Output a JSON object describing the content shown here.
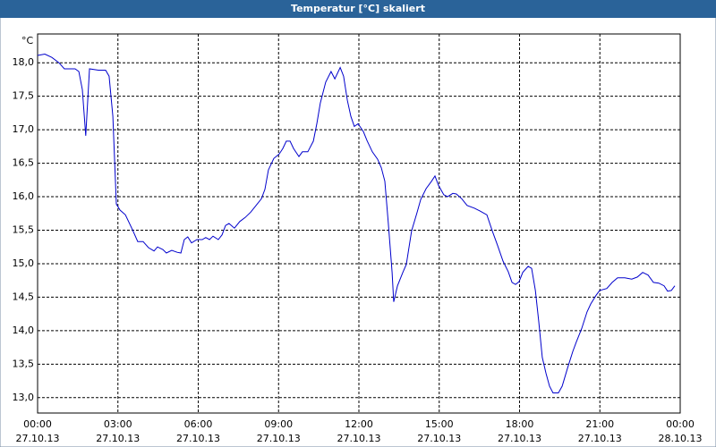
{
  "chart_data": {
    "type": "line",
    "title": "Temperatur [°C] skaliert",
    "y_unit": "°C",
    "xlim": [
      0,
      24
    ],
    "xticks": [
      {
        "value": 0,
        "label": "00:00",
        "date": "27.10.13"
      },
      {
        "value": 3,
        "label": "03:00",
        "date": "27.10.13"
      },
      {
        "value": 6,
        "label": "06:00",
        "date": "27.10.13"
      },
      {
        "value": 9,
        "label": "09:00",
        "date": "27.10.13"
      },
      {
        "value": 12,
        "label": "12:00",
        "date": "27.10.13"
      },
      {
        "value": 15,
        "label": "15:00",
        "date": "27.10.13"
      },
      {
        "value": 18,
        "label": "18:00",
        "date": "27.10.13"
      },
      {
        "value": 21,
        "label": "21:00",
        "date": "27.10.13"
      },
      {
        "value": 24,
        "label": "00:00",
        "date": "28.10.13"
      }
    ],
    "ylim": [
      12.77,
      18.43
    ],
    "yticks": [
      {
        "value": 13,
        "label": "13,0"
      },
      {
        "value": 13.5,
        "label": "13,5"
      },
      {
        "value": 14,
        "label": "14,0"
      },
      {
        "value": 14.5,
        "label": "14,5"
      },
      {
        "value": 15,
        "label": "15,0"
      },
      {
        "value": 15.5,
        "label": "15,5"
      },
      {
        "value": 16,
        "label": "16,0"
      },
      {
        "value": 16.5,
        "label": "16,5"
      },
      {
        "value": 17,
        "label": "17,0"
      },
      {
        "value": 17.5,
        "label": "17,5"
      },
      {
        "value": 18,
        "label": "18,0"
      }
    ],
    "grid": true,
    "x": [
      0.0,
      0.27,
      0.53,
      0.8,
      1.0,
      1.4,
      1.54,
      1.67,
      1.8,
      1.94,
      2.27,
      2.54,
      2.67,
      2.81,
      2.94,
      3.08,
      3.28,
      3.54,
      3.74,
      3.94,
      4.14,
      4.35,
      4.48,
      4.68,
      4.81,
      5.01,
      5.21,
      5.35,
      5.48,
      5.61,
      5.75,
      5.95,
      6.15,
      6.28,
      6.42,
      6.55,
      6.75,
      6.89,
      7.02,
      7.15,
      7.35,
      7.55,
      7.75,
      7.96,
      8.16,
      8.36,
      8.49,
      8.62,
      8.82,
      9.03,
      9.16,
      9.29,
      9.43,
      9.56,
      9.76,
      9.89,
      10.09,
      10.3,
      10.43,
      10.56,
      10.76,
      10.96,
      11.1,
      11.3,
      11.43,
      11.57,
      11.7,
      11.83,
      11.97,
      12.17,
      12.3,
      12.5,
      12.7,
      12.84,
      12.97,
      13.1,
      13.24,
      13.3,
      13.44,
      13.64,
      13.77,
      13.97,
      14.17,
      14.31,
      14.51,
      14.71,
      14.84,
      14.97,
      15.17,
      15.31,
      15.51,
      15.64,
      15.84,
      16.04,
      16.31,
      16.51,
      16.78,
      16.98,
      17.18,
      17.38,
      17.58,
      17.72,
      17.85,
      17.98,
      18.12,
      18.32,
      18.45,
      18.59,
      18.72,
      18.85,
      18.99,
      19.12,
      19.25,
      19.45,
      19.59,
      19.79,
      19.99,
      20.12,
      20.32,
      20.52,
      20.66,
      20.86,
      20.99,
      21.26,
      21.46,
      21.66,
      21.93,
      22.19,
      22.4,
      22.6,
      22.8,
      23.0,
      23.2,
      23.4,
      23.53,
      23.67,
      23.8
    ],
    "series": [
      {
        "color": "#0000cc",
        "values": [
          18.11,
          18.13,
          18.08,
          18.0,
          17.91,
          17.91,
          17.87,
          17.6,
          16.91,
          17.91,
          17.89,
          17.89,
          17.8,
          17.2,
          15.89,
          15.8,
          15.73,
          15.51,
          15.33,
          15.33,
          15.24,
          15.19,
          15.25,
          15.21,
          15.16,
          15.2,
          15.17,
          15.16,
          15.36,
          15.4,
          15.31,
          15.36,
          15.36,
          15.39,
          15.36,
          15.41,
          15.36,
          15.43,
          15.57,
          15.6,
          15.53,
          15.63,
          15.69,
          15.77,
          15.87,
          15.97,
          16.11,
          16.4,
          16.57,
          16.64,
          16.72,
          16.83,
          16.83,
          16.72,
          16.6,
          16.67,
          16.67,
          16.83,
          17.09,
          17.4,
          17.71,
          17.87,
          17.76,
          17.93,
          17.8,
          17.44,
          17.2,
          17.05,
          17.09,
          16.97,
          16.84,
          16.67,
          16.56,
          16.43,
          16.23,
          15.6,
          14.87,
          14.43,
          14.67,
          14.87,
          14.99,
          15.49,
          15.76,
          15.96,
          16.12,
          16.23,
          16.31,
          16.17,
          16.03,
          16.0,
          16.05,
          16.04,
          15.97,
          15.87,
          15.83,
          15.79,
          15.73,
          15.49,
          15.27,
          15.04,
          14.88,
          14.72,
          14.69,
          14.73,
          14.87,
          14.96,
          14.93,
          14.6,
          14.13,
          13.6,
          13.36,
          13.17,
          13.07,
          13.07,
          13.17,
          13.44,
          13.69,
          13.83,
          14.03,
          14.28,
          14.4,
          14.53,
          14.6,
          14.63,
          14.72,
          14.79,
          14.79,
          14.77,
          14.8,
          14.87,
          14.83,
          14.72,
          14.71,
          14.67,
          14.59,
          14.6,
          14.67
        ]
      }
    ]
  }
}
